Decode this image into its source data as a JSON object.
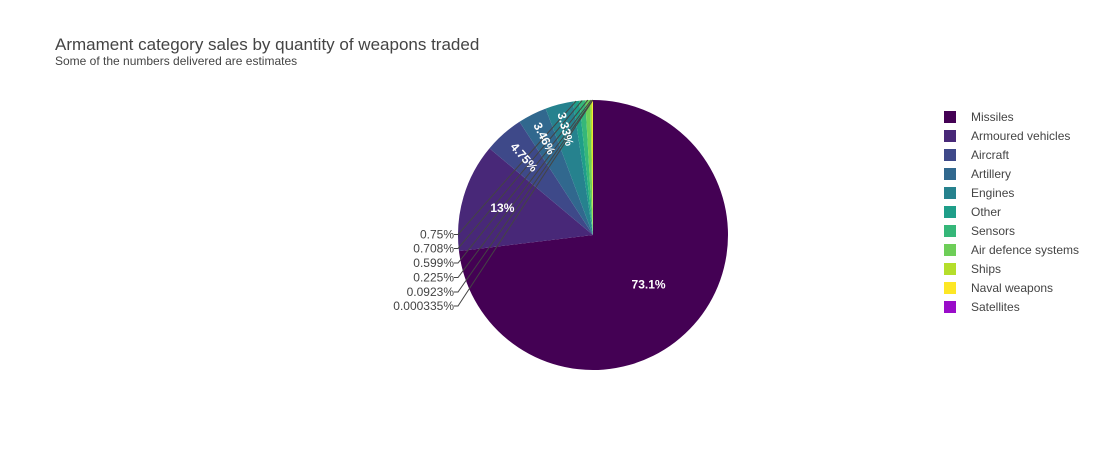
{
  "chart_data": {
    "type": "pie",
    "title": "Armament category sales by quantity of weapons traded",
    "subtitle": "Some of the numbers delivered are estimates",
    "slices": [
      {
        "label": "Missiles",
        "value": 73.1,
        "text": "73.1%",
        "color": "#440154"
      },
      {
        "label": "Armoured vehicles",
        "value": 13.0,
        "text": "13%",
        "color": "#482878"
      },
      {
        "label": "Aircraft",
        "value": 4.75,
        "text": "4.75%",
        "color": "#3e4989"
      },
      {
        "label": "Artillery",
        "value": 3.46,
        "text": "3.46%",
        "color": "#31688e"
      },
      {
        "label": "Engines",
        "value": 3.33,
        "text": "3.33%",
        "color": "#26828e"
      },
      {
        "label": "Other",
        "value": 0.75,
        "text": "0.75%",
        "color": "#1f9e89"
      },
      {
        "label": "Sensors",
        "value": 0.708,
        "text": "0.708%",
        "color": "#35b779"
      },
      {
        "label": "Air defence systems",
        "value": 0.599,
        "text": "0.599%",
        "color": "#6ece58"
      },
      {
        "label": "Ships",
        "value": 0.225,
        "text": "0.225%",
        "color": "#b5de2b"
      },
      {
        "label": "Naval weapons",
        "value": 0.0923,
        "text": "0.0923%",
        "color": "#fde725"
      },
      {
        "label": "Satellites",
        "value": 0.000335,
        "text": "0.000335%",
        "color": "#9a0cc9"
      }
    ],
    "legend_position": "right"
  }
}
